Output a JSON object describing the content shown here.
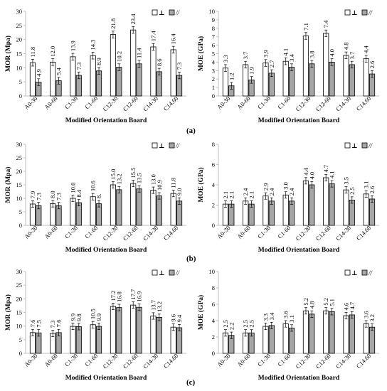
{
  "legend_labels": [
    "⊥",
    "//"
  ],
  "panel_labels": [
    "(a)",
    "(b)",
    "(c)"
  ],
  "colors": {
    "perp": "#ffffff",
    "para": "#a6a6a6",
    "axis": "#bfbfbf",
    "text": "#000000"
  },
  "chart_data": [
    {
      "type": "bar",
      "panel": "(a)",
      "ylabel": "MOR (Mpa)",
      "xlabel": "Modified Orientation Board",
      "ylim": [
        0,
        30
      ],
      "yticks": [
        0,
        5,
        10,
        15,
        20,
        25,
        30
      ],
      "categories": [
        "A0-30",
        "A0-60",
        "C1-30",
        "C1-60",
        "C12-30",
        "C12-60",
        "C14-30",
        "C14.60"
      ],
      "series": [
        {
          "name": "⊥",
          "values": [
            11.8,
            12.0,
            13.9,
            14.3,
            21.8,
            23.4,
            17.4,
            16.4
          ]
        },
        {
          "name": "//",
          "values": [
            4.9,
            5.4,
            7.3,
            8.9,
            10.2,
            11.4,
            8.6,
            7.3
          ]
        }
      ],
      "data_labels": [
        [
          "11.8",
          "12.0",
          "13.9",
          "14.3",
          "21.8",
          "23.4",
          "17.4",
          "16.4"
        ],
        [
          "4.9",
          "5.4",
          "7.3",
          "8.9",
          "10.2",
          "11.4",
          "8.6",
          "7.3"
        ]
      ],
      "grid": false,
      "legend": "top-right"
    },
    {
      "type": "bar",
      "panel": "(a)",
      "ylabel": "MOE (GPa)",
      "xlabel": "Modified Orientation Board",
      "ylim": [
        0,
        10
      ],
      "yticks": [
        0,
        1,
        2,
        3,
        4,
        5,
        6,
        7,
        8,
        9,
        10
      ],
      "categories": [
        "A0-30",
        "A0-60",
        "C1-30",
        "C1-60",
        "C12-30",
        "C12-60",
        "C14-30",
        "C14.60"
      ],
      "series": [
        {
          "name": "⊥",
          "values": [
            3.3,
            3.7,
            3.9,
            4.1,
            7.1,
            7.4,
            4.8,
            4.4
          ]
        },
        {
          "name": "//",
          "values": [
            1.2,
            1.9,
            2.7,
            3.4,
            3.8,
            4.0,
            3.7,
            2.6
          ]
        }
      ],
      "data_labels": [
        [
          "3.3",
          "3.7",
          "3.9",
          "4.1",
          "7.1",
          "7.4",
          "4.8",
          "4.4"
        ],
        [
          "1.2",
          "1.9",
          "2.7",
          "3.4",
          "3.8",
          "4.0",
          "3.7",
          "2.6"
        ]
      ],
      "grid": false,
      "legend": "top-right"
    },
    {
      "type": "bar",
      "panel": "(b)",
      "ylabel": "MOR (Mpa)",
      "xlabel": "Modified Orientation Board",
      "ylim": [
        0,
        30
      ],
      "yticks": [
        0,
        5,
        10,
        15,
        20,
        25,
        30
      ],
      "categories": [
        "A0-30",
        "A0-60",
        "C1-30",
        "C1-60",
        "C12-30",
        "C12-60",
        "C14-30",
        "C14.60"
      ],
      "series": [
        {
          "name": "⊥",
          "values": [
            7.9,
            8.0,
            10.0,
            10.6,
            15.0,
            15.5,
            13.0,
            11.8
          ]
        },
        {
          "name": "//",
          "values": [
            7.3,
            7.3,
            8.4,
            8.0,
            13.2,
            13.5,
            10.9,
            9.0
          ]
        }
      ],
      "data_labels": [
        [
          "7.9",
          "8.0",
          "10.0",
          "10.6",
          "15.0",
          "15.5",
          "13.0",
          "11.8"
        ],
        [
          "7.3",
          "7.3",
          "8.4",
          "8.",
          "13.2",
          "13.5",
          "10.9",
          "9.0"
        ]
      ],
      "grid": false,
      "legend": "top-right"
    },
    {
      "type": "bar",
      "panel": "(b)",
      "ylabel": "MOE (GPa)",
      "xlabel": "Modified Orientation Board",
      "ylim": [
        0,
        8
      ],
      "yticks": [
        0,
        2,
        4,
        6,
        8
      ],
      "categories": [
        "A0-30",
        "A0-60",
        "C1-30",
        "C1-60",
        "C12-30",
        "C12-60",
        "C14-30",
        "C14.60"
      ],
      "series": [
        {
          "name": "⊥",
          "values": [
            2.1,
            2.4,
            2.9,
            3.0,
            4.4,
            4.7,
            3.5,
            3.1
          ]
        },
        {
          "name": "//",
          "values": [
            2.1,
            2.1,
            2.4,
            2.4,
            4.0,
            4.1,
            2.5,
            2.6
          ]
        }
      ],
      "data_labels": [
        [
          "2.1",
          "2.4",
          "2.9",
          "3.0",
          "4.4",
          "4.7",
          "3.5",
          "3.1"
        ],
        [
          "2.1",
          "2.1",
          "2.4",
          "2.4",
          "4.0",
          "4.1",
          "2.5",
          "2.6"
        ]
      ],
      "grid": false,
      "legend": "top-right"
    },
    {
      "type": "bar",
      "panel": "(c)",
      "ylabel": "MOR (Mpa)",
      "xlabel": "Modified Orientation Board",
      "ylim": [
        0,
        30
      ],
      "yticks": [
        0,
        5,
        10,
        15,
        20,
        25,
        30
      ],
      "categories": [
        "A0-30",
        "A0-60",
        "C1-30",
        "C1-60",
        "C12-30",
        "C12-60",
        "C14-30",
        "C14.60"
      ],
      "series": [
        {
          "name": "⊥",
          "values": [
            7.6,
            7.3,
            9.9,
            10.5,
            17.2,
            17.7,
            13.7,
            9.6
          ]
        },
        {
          "name": "//",
          "values": [
            7.5,
            7.6,
            9.8,
            9.9,
            16.8,
            16.9,
            13.2,
            9.4
          ]
        }
      ],
      "data_labels": [
        [
          "7.6",
          "7.3",
          "9.9",
          "10.5",
          "17.2",
          "17.7",
          "13.7",
          "9.6"
        ],
        [
          "7.5",
          "7.6",
          "9.8",
          "9.9",
          "16.8",
          "16.9",
          "13.2",
          "9.4"
        ]
      ],
      "grid": false,
      "legend": "top-right"
    },
    {
      "type": "bar",
      "panel": "(c)",
      "ylabel": "MOE (GPa)",
      "xlabel": "Modified Orientation Board",
      "ylim": [
        0,
        10
      ],
      "yticks": [
        0,
        2,
        4,
        6,
        8,
        10
      ],
      "categories": [
        "A0-30",
        "A0-60",
        "C1-30",
        "C1-60",
        "C12-30",
        "C12-60",
        "C14-30",
        "C14.60"
      ],
      "series": [
        {
          "name": "⊥",
          "values": [
            2.5,
            2.5,
            3.3,
            3.6,
            5.2,
            5.2,
            4.6,
            3.6
          ]
        },
        {
          "name": "//",
          "values": [
            2.2,
            2.5,
            3.4,
            3.1,
            4.8,
            5.1,
            4.7,
            3.2
          ]
        }
      ],
      "data_labels": [
        [
          "2.5",
          "2.5",
          "3.3",
          "3.6",
          "5.2",
          "5.2",
          "4.6",
          "3.6"
        ],
        [
          "2.2",
          "2.5",
          "3.4",
          "3.1",
          "4.8",
          "5.1",
          "4.7",
          "3.2"
        ]
      ],
      "grid": false,
      "legend": "top-right"
    }
  ]
}
